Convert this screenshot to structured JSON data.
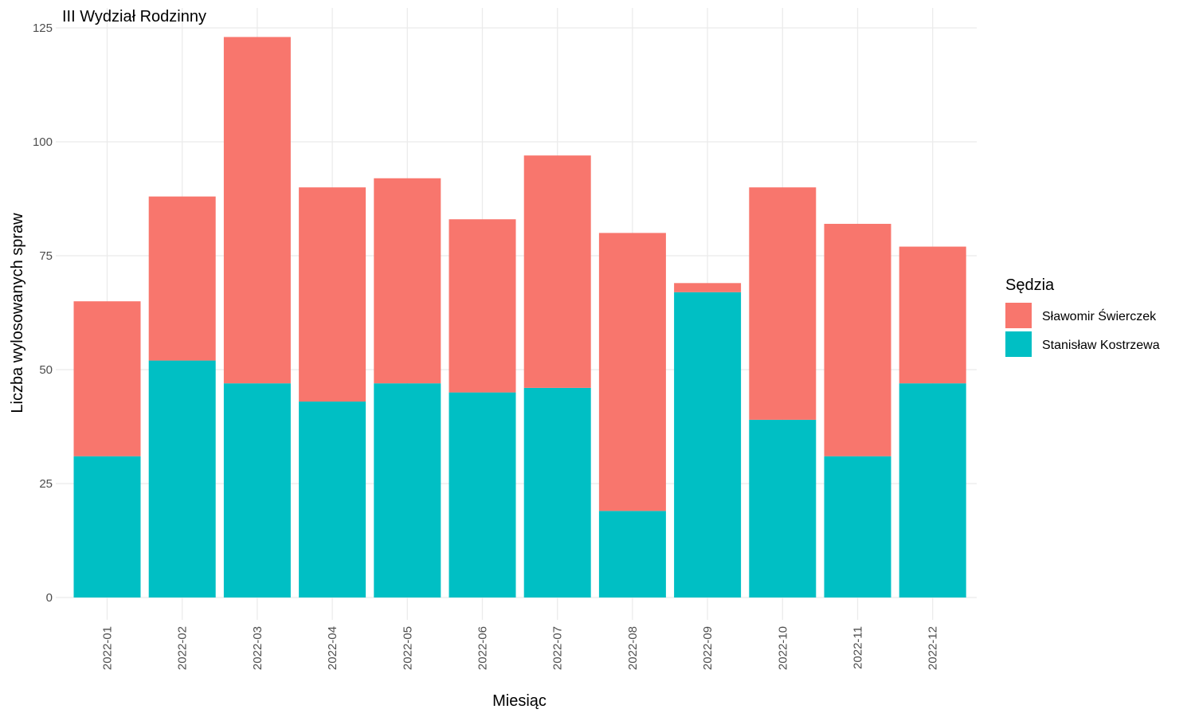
{
  "chart_data": {
    "type": "bar",
    "stacked": true,
    "title": "III Wydział Rodzinny",
    "xlabel": "Miesiąc",
    "ylabel": "Liczba wylosowanych spraw",
    "ylim": [
      0,
      125
    ],
    "yticks": [
      0,
      25,
      50,
      75,
      100,
      125
    ],
    "grid": true,
    "legend_position": "right",
    "legend_title": "Sędzia",
    "categories": [
      "2022-01",
      "2022-02",
      "2022-03",
      "2022-04",
      "2022-05",
      "2022-06",
      "2022-07",
      "2022-08",
      "2022-09",
      "2022-10",
      "2022-11",
      "2022-12"
    ],
    "series": [
      {
        "name": "Stanisław Kostrzewa",
        "color": "#00BFC4",
        "values": [
          31,
          52,
          47,
          43,
          47,
          45,
          46,
          19,
          67,
          39,
          31,
          47
        ]
      },
      {
        "name": "Sławomir Świerczek",
        "color": "#F8766D",
        "values": [
          34,
          36,
          76,
          47,
          45,
          38,
          51,
          61,
          2,
          51,
          51,
          30
        ]
      }
    ],
    "legend_order": [
      "Sławomir Świerczek",
      "Stanisław Kostrzewa"
    ]
  }
}
